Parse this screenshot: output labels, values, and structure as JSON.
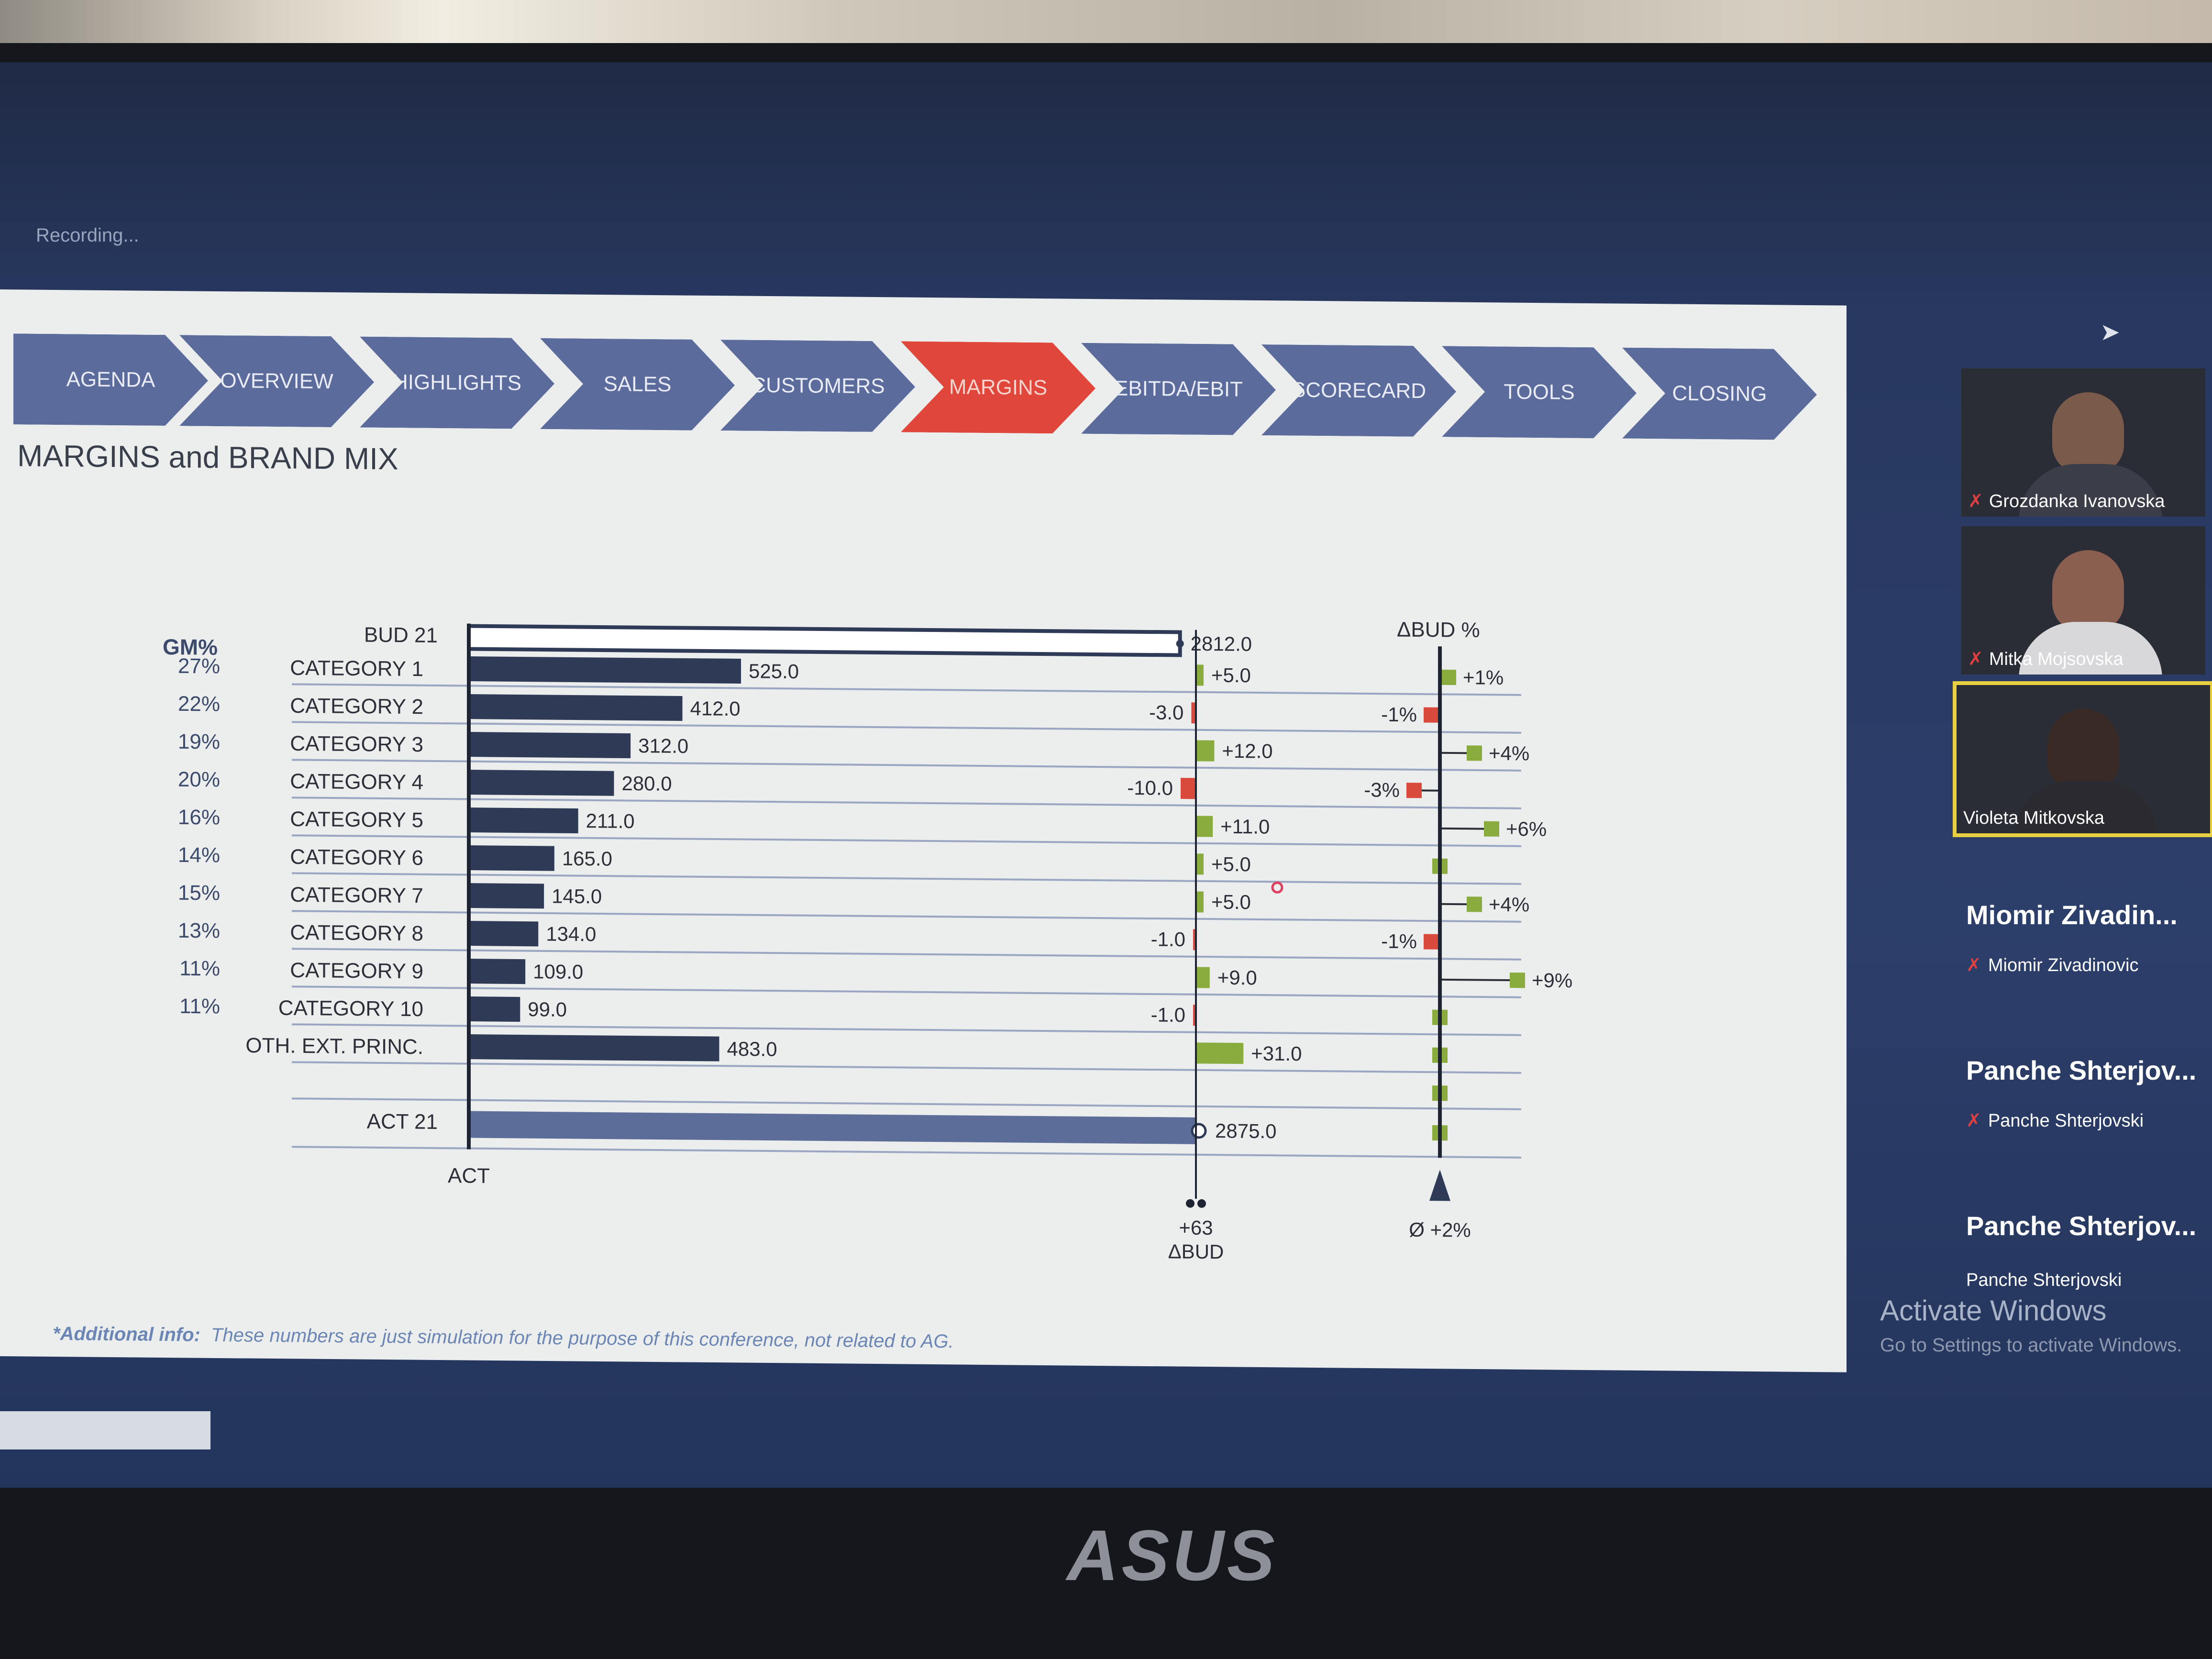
{
  "app": {
    "recording_label": "Recording..."
  },
  "nav": {
    "items": [
      {
        "label": "AGENDA",
        "active": false
      },
      {
        "label": "OVERVIEW",
        "active": false
      },
      {
        "label": "HIGHLIGHTS",
        "active": false
      },
      {
        "label": "SALES",
        "active": false
      },
      {
        "label": "CUSTOMERS",
        "active": false
      },
      {
        "label": "MARGINS",
        "active": true
      },
      {
        "label": "EBITDA/EBIT",
        "active": false
      },
      {
        "label": "SCORECARD",
        "active": false
      },
      {
        "label": "TOOLS",
        "active": false
      },
      {
        "label": "CLOSING",
        "active": false
      }
    ]
  },
  "slide": {
    "title": "MARGINS and BRAND MIX",
    "footnote_label": "*Additional info:",
    "footnote_text": "These numbers are just simulation for the purpose of this conference, not related to AG."
  },
  "chart_data": {
    "type": "bar",
    "gm_header": "GM%",
    "delta_pct_header": "ΔBUD %",
    "act_axis_label": "ACT",
    "delta_total": "+63",
    "delta_total_label": "ΔBUD",
    "avg_delta_pct": "Ø +2%",
    "budget": {
      "label": "BUD 21",
      "value": 2812.0,
      "value_label": "2812.0"
    },
    "actual": {
      "label": "ACT 21",
      "value": 2875.0,
      "value_label": "2875.0"
    },
    "categories": [
      {
        "label": "CATEGORY 1",
        "gm": "27%",
        "act": 525.0,
        "act_label": "525.0",
        "delta": 5.0,
        "delta_label": "+5.0",
        "pct": 1,
        "pct_label": "+1%"
      },
      {
        "label": "CATEGORY 2",
        "gm": "22%",
        "act": 412.0,
        "act_label": "412.0",
        "delta": -3.0,
        "delta_label": "-3.0",
        "pct": -1,
        "pct_label": "-1%"
      },
      {
        "label": "CATEGORY 3",
        "gm": "19%",
        "act": 312.0,
        "act_label": "312.0",
        "delta": 12.0,
        "delta_label": "+12.0",
        "pct": 4,
        "pct_label": "+4%"
      },
      {
        "label": "CATEGORY 4",
        "gm": "20%",
        "act": 280.0,
        "act_label": "280.0",
        "delta": -10.0,
        "delta_label": "-10.0",
        "pct": -3,
        "pct_label": "-3%"
      },
      {
        "label": "CATEGORY 5",
        "gm": "16%",
        "act": 211.0,
        "act_label": "211.0",
        "delta": 11.0,
        "delta_label": "+11.0",
        "pct": 6,
        "pct_label": "+6%"
      },
      {
        "label": "CATEGORY 6",
        "gm": "14%",
        "act": 165.0,
        "act_label": "165.0",
        "delta": 5.0,
        "delta_label": "+5.0",
        "pct": 0,
        "pct_label": ""
      },
      {
        "label": "CATEGORY 7",
        "gm": "15%",
        "act": 145.0,
        "act_label": "145.0",
        "delta": 5.0,
        "delta_label": "+5.0",
        "pct": 4,
        "pct_label": "+4%"
      },
      {
        "label": "CATEGORY 8",
        "gm": "13%",
        "act": 134.0,
        "act_label": "134.0",
        "delta": -1.0,
        "delta_label": "-1.0",
        "pct": -1,
        "pct_label": "-1%"
      },
      {
        "label": "CATEGORY 9",
        "gm": "11%",
        "act": 109.0,
        "act_label": "109.0",
        "delta": 9.0,
        "delta_label": "+9.0",
        "pct": 9,
        "pct_label": "+9%"
      },
      {
        "label": "CATEGORY 10",
        "gm": "11%",
        "act": 99.0,
        "act_label": "99.0",
        "delta": -1.0,
        "delta_label": "-1.0",
        "pct": 0,
        "pct_label": ""
      },
      {
        "label": "OTH. EXT. PRINC.",
        "gm": "",
        "act": 483.0,
        "act_label": "483.0",
        "delta": 31.0,
        "delta_label": "+31.0",
        "pct": 0,
        "pct_label": ""
      }
    ],
    "colors": {
      "bar": "#2f3a57",
      "positive": "#8aac3e",
      "negative": "#d94a3c",
      "grid": "#9aa6c2"
    }
  },
  "participants": [
    {
      "tile_name": "Grozdanka Ivanovska",
      "muted": true
    },
    {
      "tile_name": "Mitka Mojsovska",
      "muted": true
    },
    {
      "tile_name": "Violeta Mitkovska",
      "muted": false,
      "selected": true
    },
    {
      "display": "Miomir  Zivadin...",
      "name": "Miomir Zivadinovic",
      "muted": true
    },
    {
      "display": "Panche  Shterjov...",
      "name": "Panche Shterjovski",
      "muted": true
    },
    {
      "display": "Panche  Shterjov...",
      "name": "Panche Shterjovski",
      "muted": false
    }
  ],
  "watermark": {
    "title": "Activate Windows",
    "subtitle": "Go to Settings to activate Windows."
  },
  "laptop": {
    "brand": "ASUS"
  }
}
